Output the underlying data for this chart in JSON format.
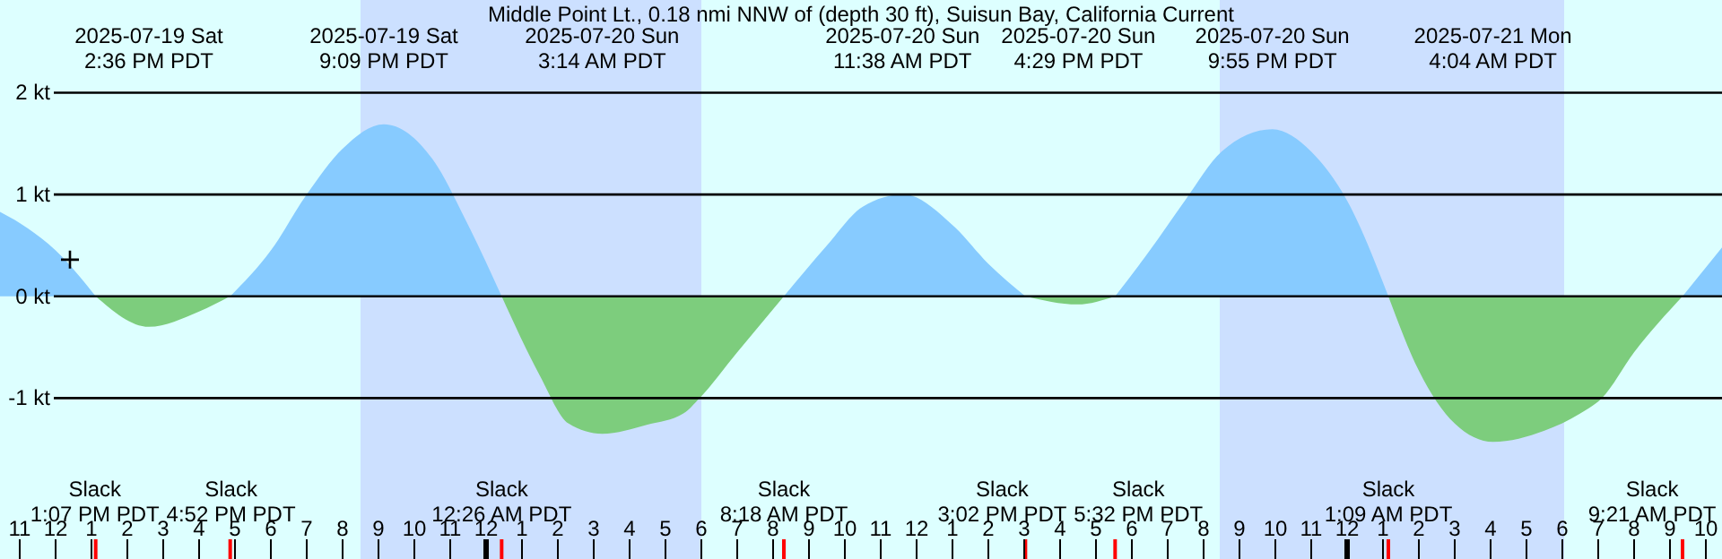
{
  "chart_data": {
    "type": "area",
    "title": "Middle Point Lt., 0.18 nmi NNW of (depth 30 ft), Suisun Bay, California Current",
    "xlim": [
      "2025-07-19T10:27",
      "2025-07-21T10:27"
    ],
    "ylim": [
      -2.58,
      2.91
    ],
    "yticks": [
      {
        "value": 2,
        "label": "2 kt"
      },
      {
        "value": 1,
        "label": "1 kt"
      },
      {
        "value": 0,
        "label": "0 kt"
      },
      {
        "value": -1,
        "label": "-1 kt"
      }
    ],
    "xticks": [
      {
        "value": "2025-07-19T11:00",
        "label": "11"
      },
      {
        "value": "2025-07-19T12:00",
        "label": "12"
      },
      {
        "value": "2025-07-19T13:00",
        "label": "1"
      },
      {
        "value": "2025-07-19T14:00",
        "label": "2"
      },
      {
        "value": "2025-07-19T15:00",
        "label": "3"
      },
      {
        "value": "2025-07-19T16:00",
        "label": "4"
      },
      {
        "value": "2025-07-19T17:00",
        "label": "5"
      },
      {
        "value": "2025-07-19T18:00",
        "label": "6"
      },
      {
        "value": "2025-07-19T19:00",
        "label": "7"
      },
      {
        "value": "2025-07-19T20:00",
        "label": "8"
      },
      {
        "value": "2025-07-19T21:00",
        "label": "9"
      },
      {
        "value": "2025-07-19T22:00",
        "label": "10"
      },
      {
        "value": "2025-07-19T23:00",
        "label": "11"
      },
      {
        "value": "2025-07-20T00:00",
        "label": "12"
      },
      {
        "value": "2025-07-20T01:00",
        "label": "1"
      },
      {
        "value": "2025-07-20T02:00",
        "label": "2"
      },
      {
        "value": "2025-07-20T03:00",
        "label": "3"
      },
      {
        "value": "2025-07-20T04:00",
        "label": "4"
      },
      {
        "value": "2025-07-20T05:00",
        "label": "5"
      },
      {
        "value": "2025-07-20T06:00",
        "label": "6"
      },
      {
        "value": "2025-07-20T07:00",
        "label": "7"
      },
      {
        "value": "2025-07-20T08:00",
        "label": "8"
      },
      {
        "value": "2025-07-20T09:00",
        "label": "9"
      },
      {
        "value": "2025-07-20T10:00",
        "label": "10"
      },
      {
        "value": "2025-07-20T11:00",
        "label": "11"
      },
      {
        "value": "2025-07-20T12:00",
        "label": "12"
      },
      {
        "value": "2025-07-20T13:00",
        "label": "1"
      },
      {
        "value": "2025-07-20T14:00",
        "label": "2"
      },
      {
        "value": "2025-07-20T15:00",
        "label": "3"
      },
      {
        "value": "2025-07-20T16:00",
        "label": "4"
      },
      {
        "value": "2025-07-20T17:00",
        "label": "5"
      },
      {
        "value": "2025-07-20T18:00",
        "label": "6"
      },
      {
        "value": "2025-07-20T19:00",
        "label": "7"
      },
      {
        "value": "2025-07-20T20:00",
        "label": "8"
      },
      {
        "value": "2025-07-20T21:00",
        "label": "9"
      },
      {
        "value": "2025-07-20T22:00",
        "label": "10"
      },
      {
        "value": "2025-07-20T23:00",
        "label": "11"
      },
      {
        "value": "2025-07-21T00:00",
        "label": "12"
      },
      {
        "value": "2025-07-21T01:00",
        "label": "1"
      },
      {
        "value": "2025-07-21T02:00",
        "label": "2"
      },
      {
        "value": "2025-07-21T03:00",
        "label": "3"
      },
      {
        "value": "2025-07-21T04:00",
        "label": "4"
      },
      {
        "value": "2025-07-21T05:00",
        "label": "5"
      },
      {
        "value": "2025-07-21T06:00",
        "label": "6"
      },
      {
        "value": "2025-07-21T07:00",
        "label": "7"
      },
      {
        "value": "2025-07-21T08:00",
        "label": "8"
      },
      {
        "value": "2025-07-21T09:00",
        "label": "9"
      },
      {
        "value": "2025-07-21T10:00",
        "label": "10"
      }
    ],
    "grid": "y",
    "bands": [
      {
        "axis": "x",
        "from": "2025-07-19T20:30",
        "to": "2025-07-20T06:00",
        "color": "#cce0ff"
      },
      {
        "axis": "x",
        "from": "2025-07-20T20:27",
        "to": "2025-07-21T06:03",
        "color": "#cce0ff"
      }
    ],
    "series": [
      {
        "color": "#87cbff",
        "x": [
          "2025-07-19T10:27",
          "2025-07-19T11:00",
          "2025-07-19T12:00",
          "2025-07-19T13:07",
          "2025-07-19T14:36",
          "2025-07-19T16:00",
          "2025-07-19T16:52",
          "2025-07-19T18:00",
          "2025-07-19T19:00",
          "2025-07-19T20:00",
          "2025-07-19T21:09",
          "2025-07-19T22:30",
          "2025-07-19T23:30",
          "2025-07-20T00:26",
          "2025-07-20T01:30",
          "2025-07-20T02:18",
          "2025-07-20T03:14",
          "2025-07-20T04:30",
          "2025-07-20T05:30",
          "2025-07-20T05:57",
          "2025-07-20T07:00",
          "2025-07-20T08:18",
          "2025-07-20T09:30",
          "2025-07-20T10:30",
          "2025-07-20T11:38",
          "2025-07-20T13:00",
          "2025-07-20T14:00",
          "2025-07-20T15:02",
          "2025-07-20T16:29",
          "2025-07-20T17:32",
          "2025-07-20T18:30",
          "2025-07-20T19:30",
          "2025-07-20T20:30",
          "2025-07-20T21:55",
          "2025-07-20T23:00",
          "2025-07-21T00:00",
          "2025-07-21T01:09",
          "2025-07-21T02:00",
          "2025-07-21T03:00",
          "2025-07-21T04:04",
          "2025-07-21T05:30",
          "2025-07-21T06:30",
          "2025-07-21T07:06",
          "2025-07-21T08:00",
          "2025-07-21T09:21",
          "2025-07-21T10:27"
        ],
        "values": [
          0.83,
          0.72,
          0.45,
          0,
          null,
          null,
          0,
          0.45,
          1.0,
          1.45,
          1.69,
          1.35,
          0.7,
          0,
          null,
          null,
          null,
          null,
          null,
          null,
          null,
          0,
          0.5,
          0.88,
          1.0,
          0.7,
          0.32,
          0,
          null,
          0,
          0.45,
          0.95,
          1.42,
          1.64,
          1.42,
          0.94,
          0,
          null,
          null,
          null,
          null,
          null,
          null,
          null,
          0,
          0.48
        ]
      },
      {
        "color": "#7dcd7d",
        "x": [
          "2025-07-19T13:07",
          "2025-07-19T14:36",
          "2025-07-19T16:00",
          "2025-07-19T16:52",
          "2025-07-19T18:00",
          "2025-07-19T19:00",
          "2025-07-19T20:00",
          "2025-07-19T21:09",
          "2025-07-19T22:30",
          "2025-07-19T23:30",
          "2025-07-20T00:26",
          "2025-07-20T01:30",
          "2025-07-20T02:18",
          "2025-07-20T03:14",
          "2025-07-20T04:30",
          "2025-07-20T05:30",
          "2025-07-20T05:57",
          "2025-07-20T07:00",
          "2025-07-20T08:18",
          "2025-07-20T09:30",
          "2025-07-20T10:30",
          "2025-07-20T11:38",
          "2025-07-20T13:00",
          "2025-07-20T14:00",
          "2025-07-20T15:02",
          "2025-07-20T16:29",
          "2025-07-20T17:32",
          "2025-07-20T18:30",
          "2025-07-20T19:30",
          "2025-07-20T20:30",
          "2025-07-20T21:55",
          "2025-07-20T23:00",
          "2025-07-21T00:00",
          "2025-07-21T01:09",
          "2025-07-21T02:00",
          "2025-07-21T03:00",
          "2025-07-21T04:04",
          "2025-07-21T05:30",
          "2025-07-21T06:30",
          "2025-07-21T07:06",
          "2025-07-21T08:00",
          "2025-07-21T09:21"
        ],
        "values": [
          0,
          -0.3,
          -0.15,
          0,
          null,
          null,
          null,
          null,
          null,
          null,
          0,
          -0.78,
          -1.25,
          -1.35,
          -1.26,
          -1.15,
          -1.0,
          -0.55,
          0,
          null,
          null,
          null,
          null,
          null,
          0,
          -0.08,
          0,
          null,
          null,
          null,
          null,
          null,
          null,
          0,
          -0.73,
          -1.25,
          -1.43,
          -1.32,
          -1.15,
          -1.0,
          -0.55,
          0
        ]
      },
      {
        "type": "scatter",
        "marker": "cross",
        "color": "#000000",
        "x": [
          "2025-07-19T12:24"
        ],
        "values": [
          0.36
        ]
      }
    ],
    "annotations": [
      "2025-07-19 Sat\n2:36 PM PDT",
      "2025-07-19 Sat\n9:09 PM PDT",
      "2025-07-20 Sun\n3:14 AM PDT",
      "2025-07-20 Sun\n11:38 AM PDT",
      "2025-07-20 Sun\n4:29 PM PDT",
      "2025-07-20 Sun\n9:55 PM PDT",
      "2025-07-21 Mon\n4:04 AM PDT",
      "Slack\n1:07 PM PDT",
      "Slack\n4:52 PM PDT",
      "Slack\n12:26 AM PDT",
      "Slack\n8:18 AM PDT",
      "Slack\n3:02 PM PDT",
      "Slack\n5:32 PM PDT",
      "Slack\n1:09 AM PDT",
      "Slack\n9:21 AM PDT"
    ]
  }
}
